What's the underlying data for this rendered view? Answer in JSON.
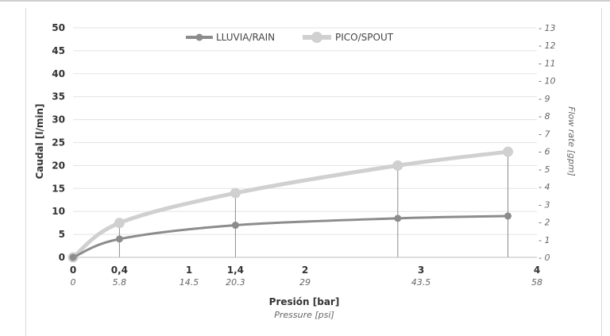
{
  "chart_data": {
    "type": "line",
    "x": [
      0,
      0.4,
      1.4,
      2.8,
      3.75
    ],
    "series": [
      {
        "name": "LLUVIA/RAIN",
        "values": [
          0,
          4,
          7,
          8.5,
          9
        ],
        "color": "#8c8c8c"
      },
      {
        "name": "PICO/SPOUT",
        "values": [
          0,
          7.5,
          14,
          20,
          23
        ],
        "color": "#d0d0d0"
      }
    ],
    "xlim": [
      0,
      4
    ],
    "ylim": [
      0,
      50
    ],
    "y2lim": [
      0,
      13
    ],
    "x_ticks_primary": [
      "0",
      "0,4",
      "1",
      "1,4",
      "2",
      "3",
      "4"
    ],
    "x_tick_values_primary": [
      0,
      0.4,
      1,
      1.4,
      2,
      3,
      4
    ],
    "x_ticks_secondary": [
      "0",
      "5.8",
      "14.5",
      "20.3",
      "29",
      "43.5",
      "58"
    ],
    "y_ticks_left": [
      "0",
      "5",
      "10",
      "15",
      "20",
      "25",
      "30",
      "35",
      "40",
      "45",
      "50"
    ],
    "y_ticks_right": [
      "- 0",
      "- 1",
      "- 2",
      "- 3",
      "- 4",
      "- 5",
      "- 6",
      "- 7",
      "- 8",
      "- 9",
      "- 10",
      "- 11",
      "- 12",
      "- 13"
    ],
    "xlabel": "Presión [bar]",
    "xlabel_secondary": "Pressure [psi]",
    "ylabel": "Caudal [l/min]",
    "ylabel_right": "Flow rate [gpm]",
    "legend_position": "top-center",
    "grid": true
  }
}
